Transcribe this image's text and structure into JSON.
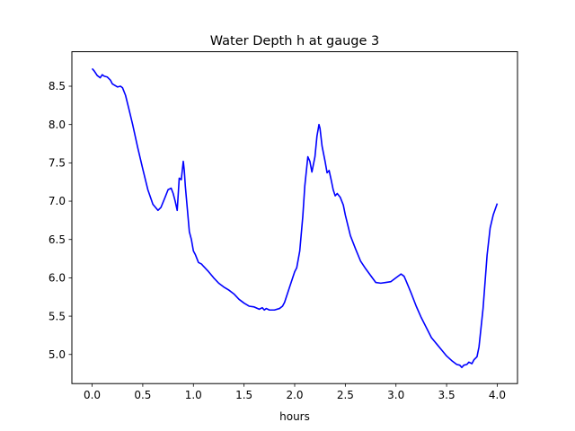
{
  "chart_data": {
    "type": "line",
    "title": "Water Depth h at gauge 3",
    "xlabel": "hours",
    "ylabel": "",
    "xlim": [
      -0.2,
      4.2
    ],
    "ylim": [
      4.62,
      8.95
    ],
    "xticks": [
      0.0,
      0.5,
      1.0,
      1.5,
      2.0,
      2.5,
      3.0,
      3.5,
      4.0
    ],
    "xtick_labels": [
      "0.0",
      "0.5",
      "1.0",
      "1.5",
      "2.0",
      "2.5",
      "3.0",
      "3.5",
      "4.0"
    ],
    "yticks": [
      5.0,
      5.5,
      6.0,
      6.5,
      7.0,
      7.5,
      8.0,
      8.5
    ],
    "ytick_labels": [
      "5.0",
      "5.5",
      "6.0",
      "6.5",
      "7.0",
      "7.5",
      "8.0",
      "8.5"
    ],
    "grid": false,
    "legend": "none",
    "series": [
      {
        "color": "#0000ff",
        "x": [
          0.0,
          0.02,
          0.05,
          0.08,
          0.1,
          0.12,
          0.15,
          0.18,
          0.2,
          0.25,
          0.28,
          0.3,
          0.33,
          0.36,
          0.4,
          0.45,
          0.5,
          0.55,
          0.6,
          0.65,
          0.68,
          0.72,
          0.75,
          0.78,
          0.8,
          0.82,
          0.84,
          0.86,
          0.88,
          0.9,
          0.91,
          0.92,
          0.93,
          0.94,
          0.96,
          0.98,
          1.0,
          1.02,
          1.05,
          1.08,
          1.1,
          1.15,
          1.2,
          1.25,
          1.3,
          1.35,
          1.4,
          1.45,
          1.5,
          1.55,
          1.6,
          1.65,
          1.68,
          1.7,
          1.72,
          1.75,
          1.8,
          1.85,
          1.88,
          1.9,
          1.95,
          2.0,
          2.02,
          2.05,
          2.08,
          2.1,
          2.13,
          2.15,
          2.17,
          2.2,
          2.22,
          2.24,
          2.25,
          2.27,
          2.3,
          2.32,
          2.34,
          2.36,
          2.38,
          2.4,
          2.42,
          2.45,
          2.48,
          2.5,
          2.55,
          2.6,
          2.65,
          2.7,
          2.75,
          2.8,
          2.85,
          2.9,
          2.95,
          3.0,
          3.03,
          3.05,
          3.08,
          3.1,
          3.15,
          3.2,
          3.25,
          3.3,
          3.35,
          3.4,
          3.45,
          3.5,
          3.55,
          3.6,
          3.63,
          3.65,
          3.67,
          3.7,
          3.72,
          3.75,
          3.77,
          3.8,
          3.82,
          3.84,
          3.86,
          3.88,
          3.9,
          3.93,
          3.96,
          4.0
        ],
        "y": [
          8.73,
          8.7,
          8.64,
          8.61,
          8.65,
          8.63,
          8.62,
          8.58,
          8.53,
          8.49,
          8.5,
          8.48,
          8.38,
          8.22,
          8.0,
          7.7,
          7.42,
          7.15,
          6.96,
          6.88,
          6.92,
          7.05,
          7.15,
          7.17,
          7.1,
          7.0,
          6.88,
          7.3,
          7.28,
          7.52,
          7.4,
          7.2,
          7.05,
          6.9,
          6.6,
          6.5,
          6.35,
          6.3,
          6.2,
          6.18,
          6.15,
          6.08,
          6.0,
          5.93,
          5.88,
          5.84,
          5.79,
          5.72,
          5.67,
          5.63,
          5.62,
          5.59,
          5.61,
          5.58,
          5.6,
          5.58,
          5.58,
          5.6,
          5.63,
          5.68,
          5.88,
          6.08,
          6.13,
          6.35,
          6.8,
          7.2,
          7.58,
          7.52,
          7.38,
          7.58,
          7.85,
          8.0,
          7.95,
          7.72,
          7.52,
          7.37,
          7.4,
          7.28,
          7.15,
          7.07,
          7.1,
          7.05,
          6.95,
          6.82,
          6.55,
          6.38,
          6.22,
          6.12,
          6.03,
          5.94,
          5.93,
          5.94,
          5.95,
          6.0,
          6.03,
          6.05,
          6.02,
          5.96,
          5.8,
          5.63,
          5.48,
          5.35,
          5.22,
          5.14,
          5.06,
          4.98,
          4.92,
          4.87,
          4.86,
          4.83,
          4.86,
          4.87,
          4.9,
          4.88,
          4.93,
          4.97,
          5.1,
          5.35,
          5.6,
          5.95,
          6.3,
          6.65,
          6.82,
          6.97
        ]
      }
    ]
  }
}
